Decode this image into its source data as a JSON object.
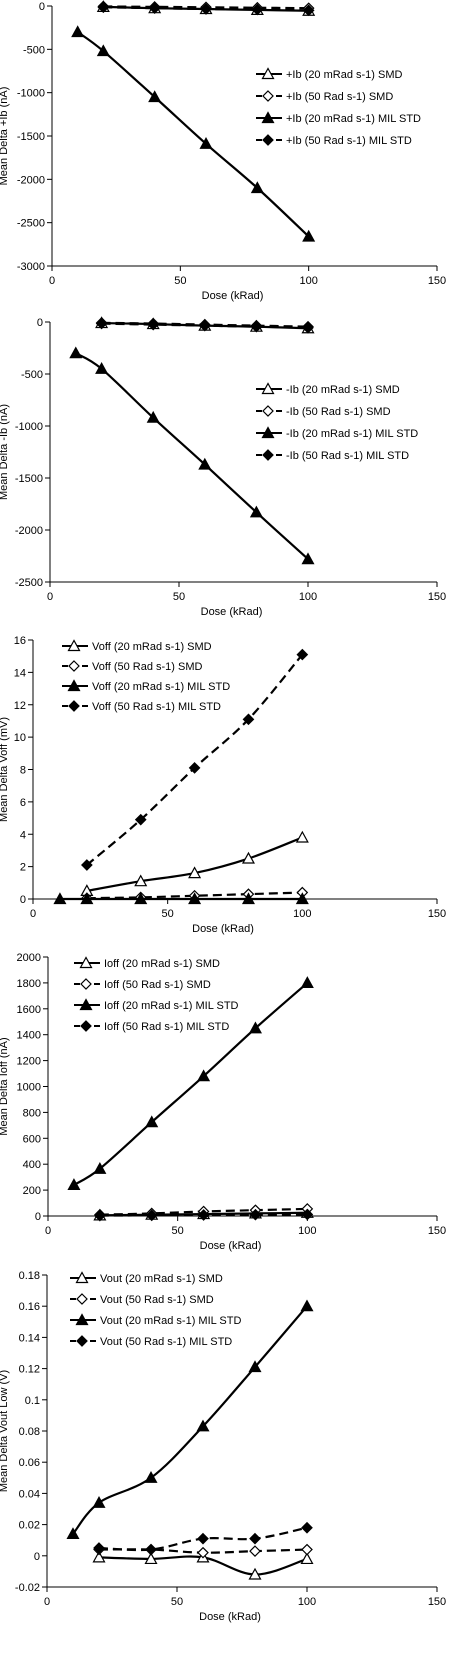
{
  "chart_data": [
    {
      "type": "line",
      "xlabel": "Dose (kRad)",
      "ylabel": "Mean Delta +Ib (nA)",
      "xlim": [
        0,
        150
      ],
      "ylim": [
        -3000,
        0
      ],
      "xticks": [
        0,
        50,
        100,
        150
      ],
      "yticks": [
        0,
        -500,
        -1000,
        -1500,
        -2000,
        -2500,
        -3000
      ],
      "grid": false,
      "legend_position": "right",
      "series": [
        {
          "name": "+Ib (20 mRad s-1) SMD",
          "marker": "triangle-open",
          "dash": "solid",
          "x": [
            20,
            40,
            60,
            80,
            100
          ],
          "y": [
            -10,
            -25,
            -35,
            -45,
            -55
          ]
        },
        {
          "name": "+Ib (50 Rad s-1) SMD",
          "marker": "diamond-open",
          "dash": "dashed",
          "x": [
            20,
            40,
            60,
            80,
            100
          ],
          "y": [
            -5,
            -10,
            -15,
            -20,
            -25
          ]
        },
        {
          "name": "+Ib (20 mRad s-1) MIL STD",
          "marker": "triangle-filled",
          "dash": "solid",
          "x": [
            10,
            20,
            40,
            60,
            80,
            100
          ],
          "y": [
            -300,
            -520,
            -1050,
            -1590,
            -2100,
            -2660
          ]
        },
        {
          "name": "+Ib (50 Rad s-1) MIL STD",
          "marker": "diamond-filled",
          "dash": "dashed",
          "x": [
            20,
            40,
            60,
            80,
            100
          ],
          "y": [
            -15,
            -25,
            -35,
            -40,
            -50
          ]
        }
      ]
    },
    {
      "type": "line",
      "xlabel": "Dose (kRad)",
      "ylabel": "Mean Delta -Ib (nA)",
      "xlim": [
        0,
        150
      ],
      "ylim": [
        -2500,
        0
      ],
      "xticks": [
        0,
        50,
        100,
        150
      ],
      "yticks": [
        0,
        -500,
        -1000,
        -1500,
        -2000,
        -2500
      ],
      "grid": false,
      "legend_position": "right",
      "series": [
        {
          "name": "-Ib (20 mRad s-1)  SMD",
          "marker": "triangle-open",
          "dash": "solid",
          "x": [
            20,
            40,
            60,
            80,
            100
          ],
          "y": [
            -10,
            -20,
            -35,
            -45,
            -60
          ]
        },
        {
          "name": "-Ib (50 Rad s-1) SMD",
          "marker": "diamond-open",
          "dash": "dashed",
          "x": [
            20,
            40,
            60,
            80,
            100
          ],
          "y": [
            -8,
            -15,
            -25,
            -35,
            -45
          ]
        },
        {
          "name": "-Ib (20 mRad s-1) MIL STD",
          "marker": "triangle-filled",
          "dash": "solid",
          "x": [
            10,
            20,
            40,
            60,
            80,
            100
          ],
          "y": [
            -300,
            -450,
            -920,
            -1370,
            -1830,
            -2280
          ]
        },
        {
          "name": "-Ib (50 Rad s-1) MIL STD",
          "marker": "diamond-filled",
          "dash": "dashed",
          "x": [
            20,
            40,
            60,
            80,
            100
          ],
          "y": [
            -15,
            -25,
            -35,
            -45,
            -55
          ]
        }
      ]
    },
    {
      "type": "line",
      "xlabel": "Dose (kRad)",
      "ylabel": "Mean Delta Voff (mV)",
      "xlim": [
        0,
        150
      ],
      "ylim": [
        0,
        16
      ],
      "xticks": [
        0,
        50,
        100,
        150
      ],
      "yticks": [
        0,
        2,
        4,
        6,
        8,
        10,
        12,
        14,
        16
      ],
      "grid": false,
      "legend_position": "top-left",
      "series": [
        {
          "name": "Voff (20 mRad s-1) SMD",
          "marker": "triangle-open",
          "dash": "solid",
          "x": [
            20,
            40,
            60,
            80,
            100
          ],
          "y": [
            0.5,
            1.1,
            1.6,
            2.5,
            3.8
          ]
        },
        {
          "name": "Voff (50 Rad s-1) SMD",
          "marker": "diamond-open",
          "dash": "dashed",
          "x": [
            20,
            40,
            60,
            80,
            100
          ],
          "y": [
            0.05,
            0.1,
            0.2,
            0.3,
            0.4
          ]
        },
        {
          "name": "Voff (20 mRad s-1) MIL STD",
          "marker": "triangle-filled",
          "dash": "solid",
          "x": [
            10,
            20,
            40,
            60,
            80,
            100
          ],
          "y": [
            0,
            0,
            0,
            0,
            0,
            0
          ]
        },
        {
          "name": "Voff (50 Rad s-1) MIL STD",
          "marker": "diamond-filled",
          "dash": "dashed",
          "x": [
            20,
            40,
            60,
            80,
            100
          ],
          "y": [
            2.1,
            4.9,
            8.1,
            11.1,
            15.1
          ]
        }
      ]
    },
    {
      "type": "line",
      "xlabel": "Dose (kRad)",
      "ylabel": "Mean Delta Ioff (nA)",
      "xlim": [
        0,
        150
      ],
      "ylim": [
        0,
        2000
      ],
      "xticks": [
        0,
        50,
        100,
        150
      ],
      "yticks": [
        0,
        200,
        400,
        600,
        800,
        1000,
        1200,
        1400,
        1600,
        1800,
        2000
      ],
      "grid": false,
      "legend_position": "top-left",
      "series": [
        {
          "name": "Ioff (20 mRad s-1) SMD",
          "marker": "triangle-open",
          "dash": "solid",
          "x": [
            20,
            40,
            60,
            80,
            100
          ],
          "y": [
            5,
            10,
            15,
            20,
            25
          ]
        },
        {
          "name": "Ioff (50 Rad s-1) SMD",
          "marker": "diamond-open",
          "dash": "dashed",
          "x": [
            20,
            40,
            60,
            80,
            100
          ],
          "y": [
            10,
            20,
            35,
            45,
            55
          ]
        },
        {
          "name": "Ioff (20 mRad s-1) MIL STD",
          "marker": "triangle-filled",
          "dash": "solid",
          "x": [
            10,
            20,
            40,
            60,
            80,
            100
          ],
          "y": [
            240,
            365,
            725,
            1080,
            1450,
            1800
          ]
        },
        {
          "name": "Ioff (50 Rad s-1) MIL STD",
          "marker": "diamond-filled",
          "dash": "dashed",
          "x": [
            20,
            40,
            60,
            80,
            100
          ],
          "y": [
            3,
            5,
            8,
            10,
            12
          ]
        }
      ]
    },
    {
      "type": "line",
      "xlabel": "Dose (kRad)",
      "ylabel": "Mean Delta Vout Low (V)",
      "xlim": [
        0,
        150
      ],
      "ylim": [
        -0.02,
        0.18
      ],
      "xticks": [
        0,
        50,
        100,
        150
      ],
      "yticks": [
        -0.02,
        0,
        0.02,
        0.04,
        0.06,
        0.08,
        0.1,
        0.12,
        0.14,
        0.16,
        0.18
      ],
      "grid": false,
      "legend_position": "top-left",
      "series": [
        {
          "name": "Vout (20 mRad s-1) SMD",
          "marker": "triangle-open",
          "dash": "solid",
          "x": [
            20,
            40,
            60,
            80,
            100
          ],
          "y": [
            -0.001,
            -0.002,
            -0.001,
            -0.012,
            -0.002
          ]
        },
        {
          "name": "Vout (50 Rad s-1) SMD",
          "marker": "diamond-open",
          "dash": "dashed",
          "x": [
            20,
            40,
            60,
            80,
            100
          ],
          "y": [
            0.004,
            0.004,
            0.002,
            0.003,
            0.004
          ]
        },
        {
          "name": "Vout (20 mRad s-1) MIL STD",
          "marker": "triangle-filled",
          "dash": "solid",
          "x": [
            10,
            20,
            40,
            60,
            80,
            100
          ],
          "y": [
            0.014,
            0.034,
            0.05,
            0.083,
            0.121,
            0.16
          ]
        },
        {
          "name": "Vout (50 Rad s-1) MIL STD",
          "marker": "diamond-filled",
          "dash": "dashed",
          "x": [
            20,
            40,
            60,
            80,
            100
          ],
          "y": [
            0.005,
            0.004,
            0.011,
            0.011,
            0.018
          ]
        }
      ]
    }
  ]
}
